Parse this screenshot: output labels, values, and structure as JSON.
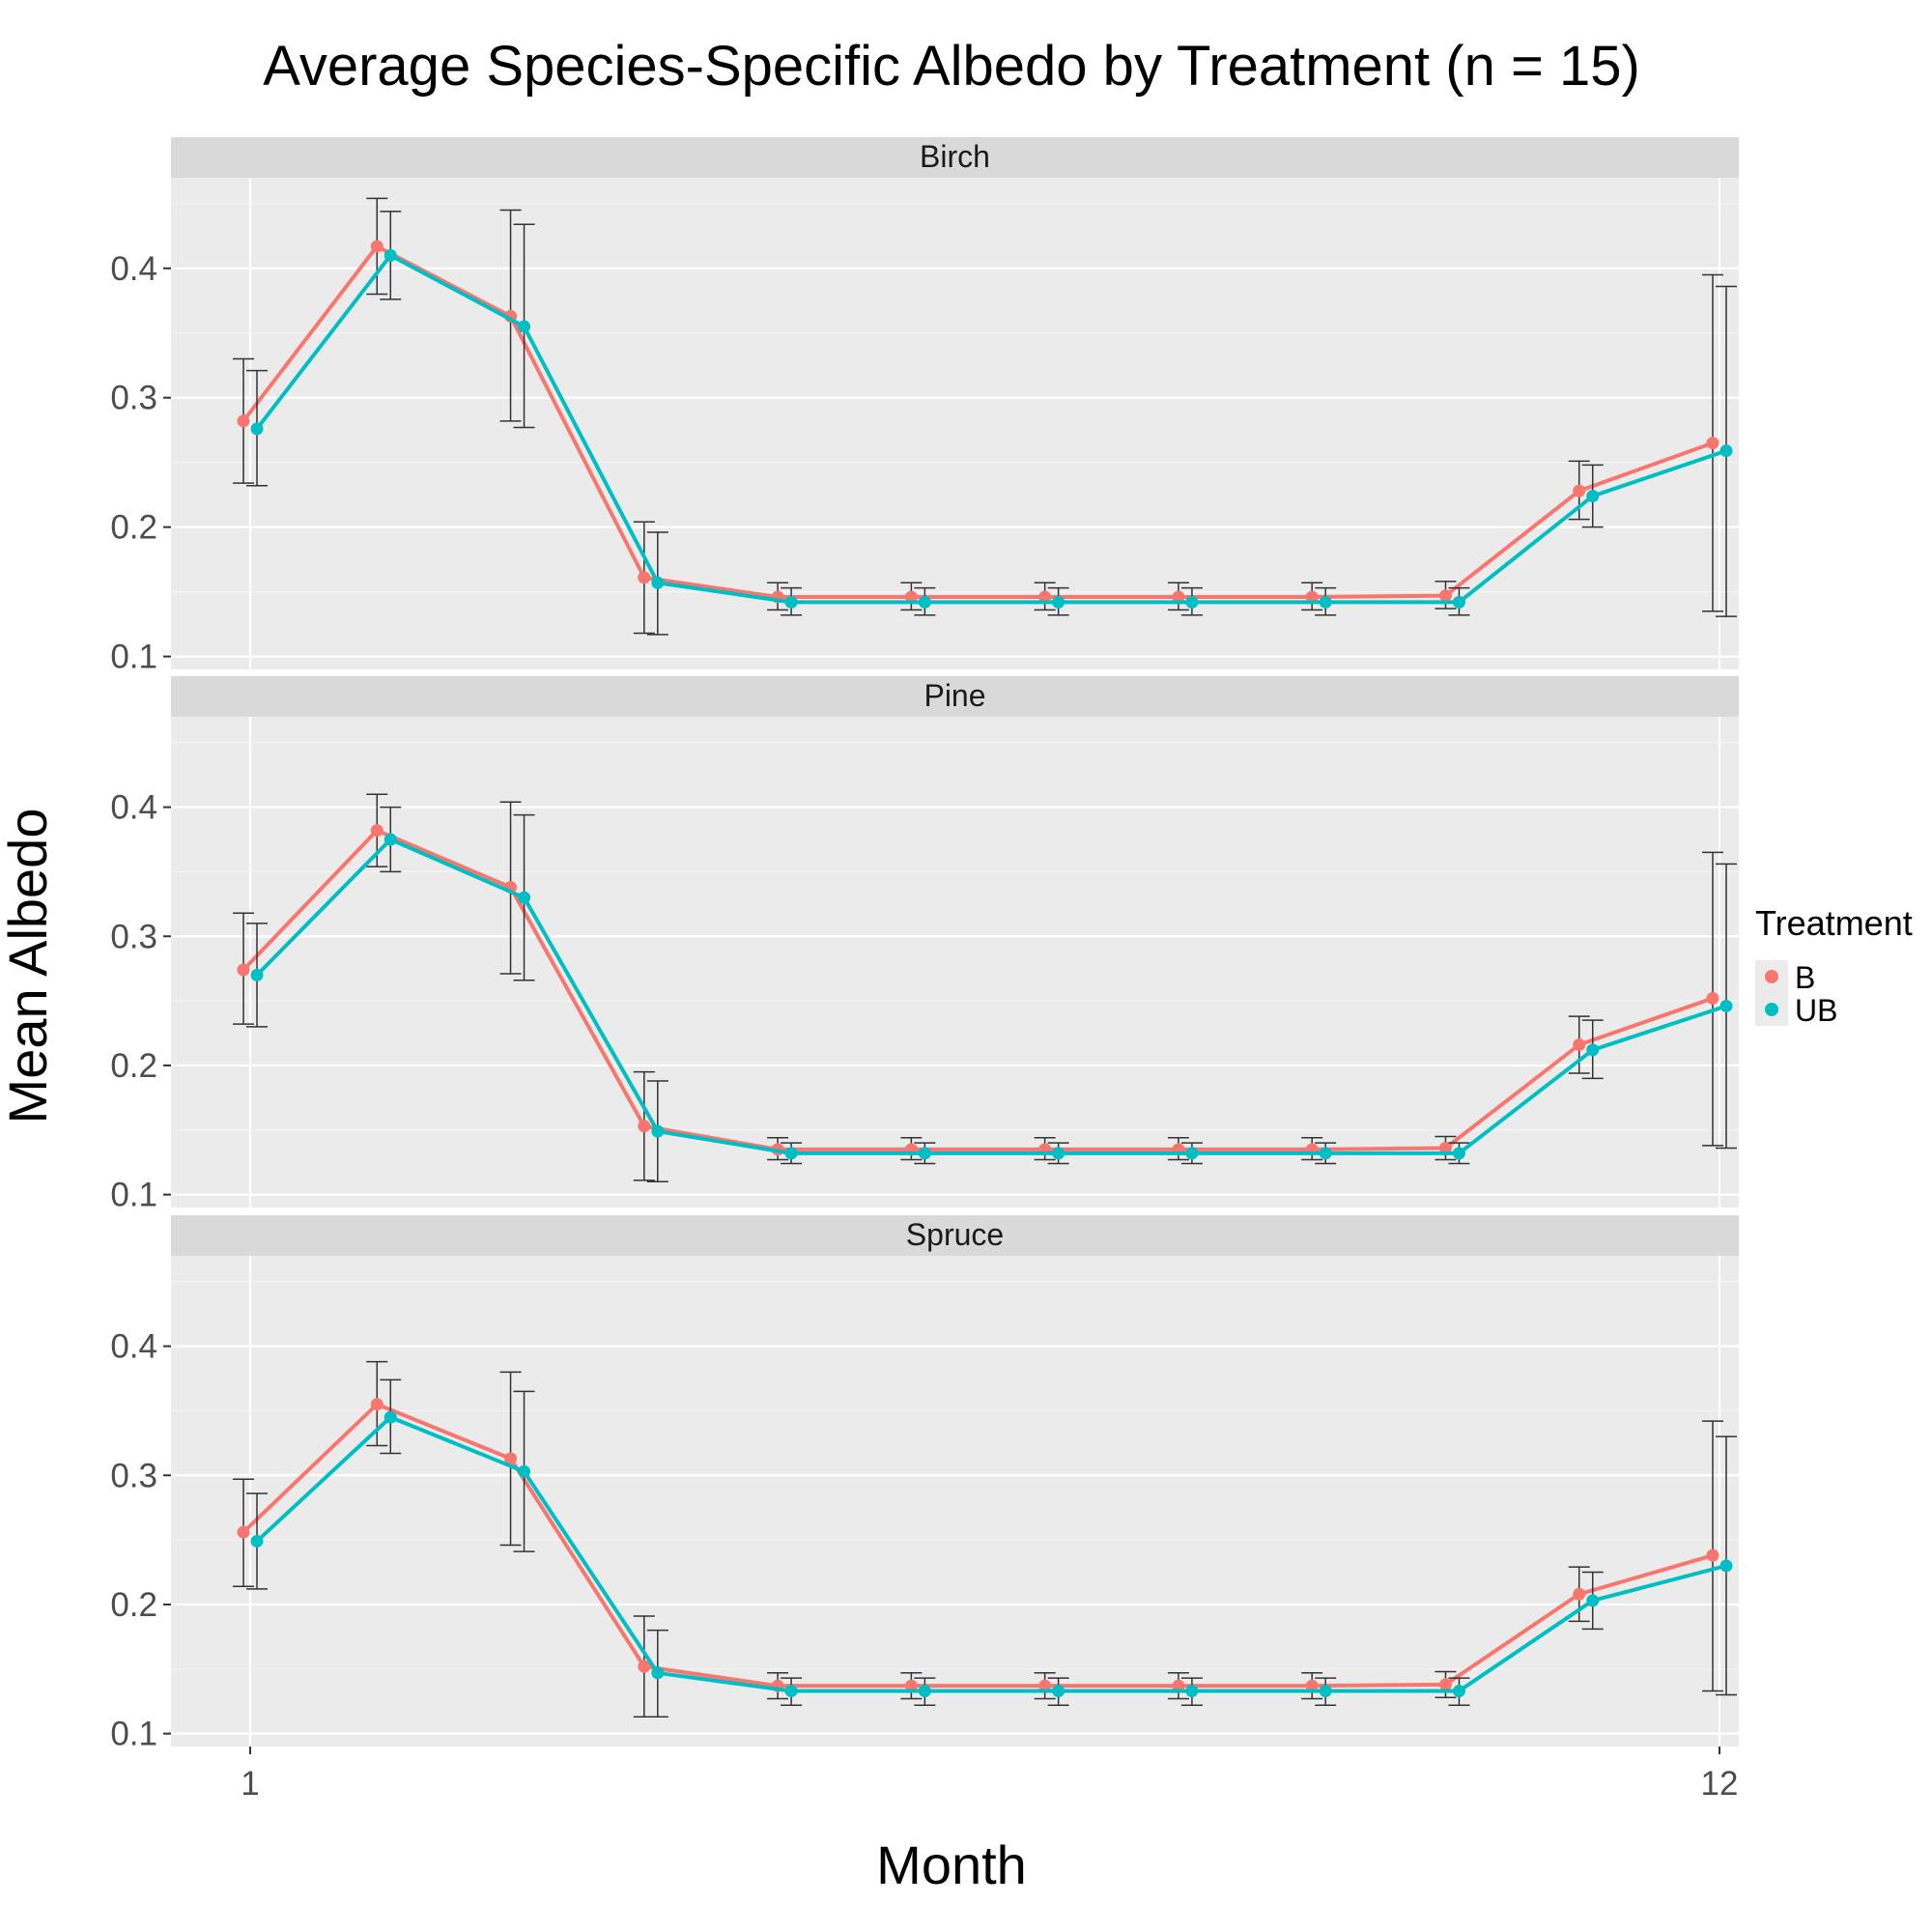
{
  "chart_data": {
    "type": "line",
    "title": "Average Species-Specific Albedo by Treatment (n = 15)",
    "xlabel": "Month",
    "ylabel": "Mean Albedo",
    "x": [
      1,
      2,
      3,
      4,
      5,
      6,
      7,
      8,
      9,
      10,
      11,
      12
    ],
    "x_tick_labels": [
      "1",
      "12"
    ],
    "x_tick_values": [
      1,
      12
    ],
    "ylim": [
      0.09,
      0.47
    ],
    "y_ticks": [
      0.1,
      0.2,
      0.3,
      0.4
    ],
    "y_tick_labels": [
      "0.1",
      "0.2",
      "0.3",
      "0.4"
    ],
    "grid": true,
    "error_bars": true,
    "legend": {
      "title": "Treatment",
      "position": "right",
      "entries": [
        {
          "label": "B",
          "color": "#F8766D"
        },
        {
          "label": "UB",
          "color": "#00BFC4"
        }
      ]
    },
    "facets": [
      {
        "label": "Birch",
        "series": [
          {
            "name": "B",
            "color": "#F8766D",
            "values": [
              0.282,
              0.417,
              0.363,
              0.161,
              0.146,
              0.146,
              0.146,
              0.146,
              0.146,
              0.147,
              0.228,
              0.265
            ],
            "lower": [
              0.234,
              0.38,
              0.282,
              0.118,
              0.136,
              0.136,
              0.136,
              0.136,
              0.136,
              0.137,
              0.206,
              0.135
            ],
            "upper": [
              0.33,
              0.454,
              0.445,
              0.204,
              0.157,
              0.157,
              0.157,
              0.157,
              0.157,
              0.158,
              0.251,
              0.395
            ]
          },
          {
            "name": "UB",
            "color": "#00BFC4",
            "values": [
              0.276,
              0.41,
              0.355,
              0.157,
              0.142,
              0.142,
              0.142,
              0.142,
              0.142,
              0.142,
              0.224,
              0.259
            ],
            "lower": [
              0.232,
              0.376,
              0.277,
              0.117,
              0.132,
              0.132,
              0.132,
              0.132,
              0.132,
              0.132,
              0.2,
              0.131
            ],
            "upper": [
              0.321,
              0.444,
              0.434,
              0.196,
              0.153,
              0.153,
              0.153,
              0.153,
              0.153,
              0.153,
              0.248,
              0.386
            ]
          }
        ]
      },
      {
        "label": "Pine",
        "series": [
          {
            "name": "B",
            "color": "#F8766D",
            "values": [
              0.274,
              0.382,
              0.338,
              0.153,
              0.135,
              0.135,
              0.135,
              0.135,
              0.135,
              0.136,
              0.216,
              0.252
            ],
            "lower": [
              0.232,
              0.354,
              0.271,
              0.111,
              0.127,
              0.127,
              0.127,
              0.127,
              0.127,
              0.127,
              0.194,
              0.138
            ],
            "upper": [
              0.318,
              0.41,
              0.404,
              0.195,
              0.144,
              0.144,
              0.144,
              0.144,
              0.144,
              0.145,
              0.238,
              0.365
            ]
          },
          {
            "name": "UB",
            "color": "#00BFC4",
            "values": [
              0.27,
              0.375,
              0.33,
              0.149,
              0.132,
              0.132,
              0.132,
              0.132,
              0.132,
              0.132,
              0.212,
              0.246
            ],
            "lower": [
              0.23,
              0.35,
              0.266,
              0.11,
              0.124,
              0.124,
              0.124,
              0.124,
              0.124,
              0.124,
              0.19,
              0.136
            ],
            "upper": [
              0.31,
              0.4,
              0.394,
              0.188,
              0.14,
              0.14,
              0.14,
              0.14,
              0.14,
              0.14,
              0.235,
              0.356
            ]
          }
        ]
      },
      {
        "label": "Spruce",
        "series": [
          {
            "name": "B",
            "color": "#F8766D",
            "values": [
              0.256,
              0.355,
              0.313,
              0.152,
              0.137,
              0.137,
              0.137,
              0.137,
              0.137,
              0.138,
              0.208,
              0.238
            ],
            "lower": [
              0.214,
              0.323,
              0.246,
              0.113,
              0.127,
              0.127,
              0.127,
              0.127,
              0.127,
              0.128,
              0.187,
              0.133
            ],
            "upper": [
              0.297,
              0.388,
              0.38,
              0.191,
              0.147,
              0.147,
              0.147,
              0.147,
              0.147,
              0.148,
              0.229,
              0.342
            ]
          },
          {
            "name": "UB",
            "color": "#00BFC4",
            "values": [
              0.249,
              0.345,
              0.303,
              0.147,
              0.133,
              0.133,
              0.133,
              0.133,
              0.133,
              0.133,
              0.203,
              0.23
            ],
            "lower": [
              0.212,
              0.317,
              0.241,
              0.113,
              0.122,
              0.122,
              0.122,
              0.122,
              0.122,
              0.122,
              0.181,
              0.13
            ],
            "upper": [
              0.286,
              0.374,
              0.365,
              0.18,
              0.143,
              0.143,
              0.143,
              0.143,
              0.143,
              0.143,
              0.225,
              0.33
            ]
          }
        ]
      }
    ]
  }
}
